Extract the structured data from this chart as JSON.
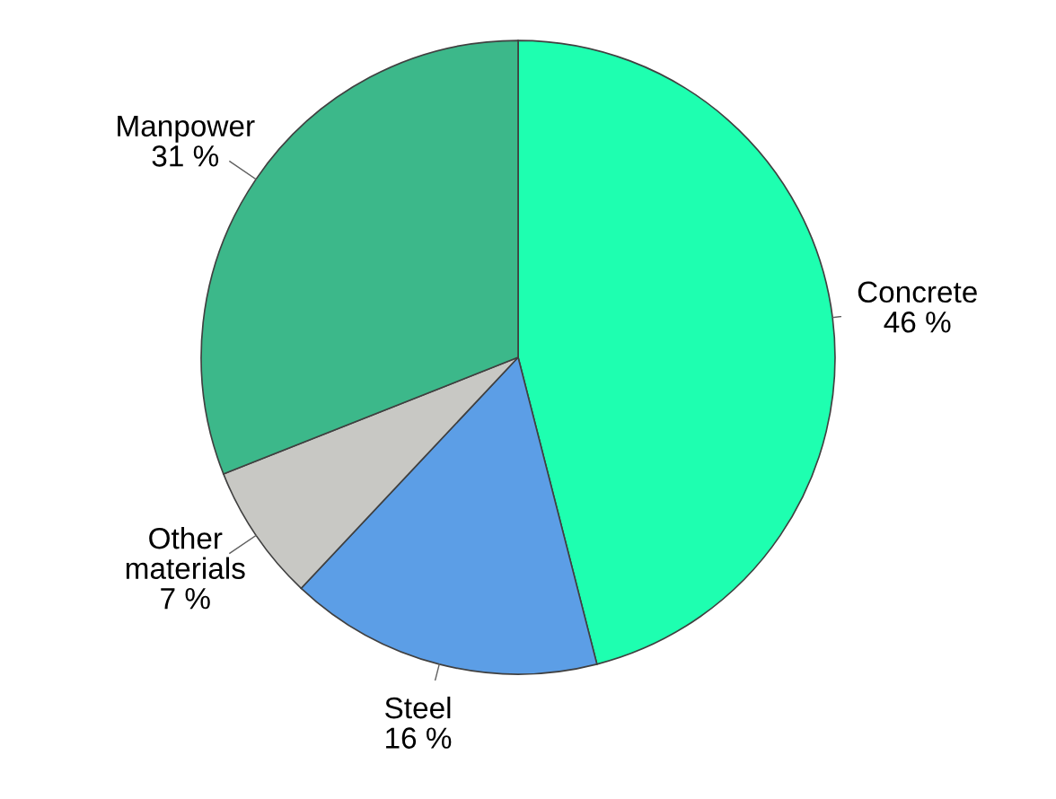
{
  "chart_data": {
    "type": "pie",
    "categories": [
      "Concrete",
      "Steel",
      "Other\nmaterials",
      "Manpower"
    ],
    "values": [
      46,
      16,
      7,
      31
    ],
    "value_labels": [
      "46 %",
      "16 %",
      "7 %",
      "31 %"
    ],
    "colors": [
      "#1effb0",
      "#5c9ee6",
      "#c8c8c4",
      "#3cb88a"
    ]
  }
}
